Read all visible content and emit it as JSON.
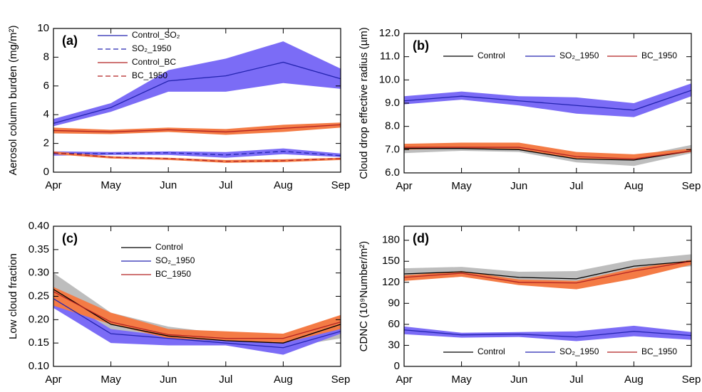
{
  "chart_data": [
    {
      "type": "line",
      "label": "(a)",
      "ylabel": "Aerosol column burden (mg/m²)",
      "categories": [
        "Apr",
        "May",
        "Jun",
        "Jul",
        "Aug",
        "Sep"
      ],
      "ylim": [
        0,
        10
      ],
      "yticks": [
        0,
        2,
        4,
        6,
        8,
        10
      ],
      "legend": "upper left",
      "legend_layout": "column",
      "series": [
        {
          "name": "Control_SO₂",
          "color": "#2424b0",
          "band_color": "#7b6cf6",
          "linestyle": "solid",
          "values": [
            3.4,
            4.5,
            6.35,
            6.7,
            7.65,
            6.5
          ],
          "lower": [
            3.2,
            4.2,
            5.6,
            5.6,
            6.2,
            5.8
          ],
          "upper": [
            3.7,
            4.8,
            7.1,
            7.9,
            9.1,
            7.2
          ]
        },
        {
          "name": "SO₂_1950",
          "color": "#2424b0",
          "band_color": "#7b6cf6",
          "linestyle": "dashed",
          "values": [
            1.3,
            1.3,
            1.35,
            1.2,
            1.45,
            1.15
          ],
          "lower": [
            1.15,
            1.2,
            1.2,
            1.0,
            1.25,
            1.05
          ],
          "upper": [
            1.45,
            1.4,
            1.45,
            1.4,
            1.65,
            1.3
          ]
        },
        {
          "name": "Control_BC",
          "color": "#b22222",
          "band_color": "#f47b45",
          "linestyle": "solid",
          "values": [
            2.9,
            2.8,
            2.95,
            2.8,
            3.05,
            3.3
          ],
          "lower": [
            2.7,
            2.65,
            2.8,
            2.6,
            2.8,
            3.1
          ],
          "upper": [
            3.1,
            2.95,
            3.1,
            3.0,
            3.3,
            3.45
          ]
        },
        {
          "name": "BC_1950",
          "color": "#b22222",
          "band_color": "#f47b45",
          "linestyle": "dashed",
          "values": [
            1.35,
            1.05,
            0.95,
            0.75,
            0.8,
            0.95
          ],
          "lower": [
            1.25,
            0.95,
            0.85,
            0.65,
            0.7,
            0.85
          ],
          "upper": [
            1.45,
            1.1,
            1.0,
            0.85,
            0.9,
            1.0
          ]
        }
      ]
    },
    {
      "type": "line",
      "label": "(b)",
      "ylabel": "Cloud drop effective radius (µm)",
      "categories": [
        "Apr",
        "May",
        "Jun",
        "Jul",
        "Aug",
        "Sep"
      ],
      "ylim": [
        6,
        12
      ],
      "yticks": [
        {
          "value": 6,
          "label": "6.0"
        },
        {
          "value": 7,
          "label": "7.0"
        },
        {
          "value": 8,
          "label": "8.0"
        },
        {
          "value": 9,
          "label": "9.0"
        },
        {
          "value": 10,
          "label": "10.0"
        },
        {
          "value": 11,
          "label": "11.0"
        },
        {
          "value": 12,
          "label": "12.0"
        }
      ],
      "legend": "upper center",
      "legend_layout": "row",
      "series": [
        {
          "name": "Control",
          "color": "#000000",
          "band_color": "#bdbdbd",
          "linestyle": "solid",
          "values": [
            7.05,
            7.05,
            7.0,
            6.6,
            6.55,
            6.95
          ],
          "lower": [
            6.85,
            6.95,
            6.9,
            6.45,
            6.3,
            6.85
          ],
          "upper": [
            7.15,
            7.15,
            7.1,
            6.75,
            6.7,
            7.2
          ]
        },
        {
          "name": "SO₂_1950",
          "color": "#2424b0",
          "band_color": "#7b6cf6",
          "linestyle": "solid",
          "values": [
            9.1,
            9.3,
            9.1,
            8.9,
            8.7,
            9.55
          ],
          "lower": [
            8.95,
            9.15,
            8.9,
            8.55,
            8.4,
            9.3
          ],
          "upper": [
            9.3,
            9.5,
            9.3,
            9.25,
            9.0,
            9.85
          ]
        },
        {
          "name": "BC_1950",
          "color": "#b22222",
          "band_color": "#f47b45",
          "linestyle": "solid",
          "values": [
            7.1,
            7.1,
            7.1,
            6.7,
            6.6,
            6.95
          ],
          "lower": [
            7.0,
            7.05,
            7.0,
            6.6,
            6.55,
            6.9
          ],
          "upper": [
            7.25,
            7.3,
            7.3,
            6.9,
            6.8,
            7.05
          ]
        }
      ]
    },
    {
      "type": "line",
      "label": "(c)",
      "ylabel": "Low cloud fraction",
      "categories": [
        "Apr",
        "May",
        "Jun",
        "Jul",
        "Aug",
        "Sep"
      ],
      "ylim": [
        0.1,
        0.4
      ],
      "yticks": [
        {
          "value": 0.1,
          "label": "0.10"
        },
        0.15,
        {
          "value": 0.2,
          "label": "0.20"
        },
        0.25,
        {
          "value": 0.3,
          "label": "0.30"
        },
        0.35,
        {
          "value": 0.4,
          "label": "0.40"
        }
      ],
      "legend": "upper center",
      "legend_layout": "column",
      "series": [
        {
          "name": "Control",
          "color": "#000000",
          "band_color": "#bdbdbd",
          "linestyle": "solid",
          "values": [
            0.265,
            0.19,
            0.165,
            0.155,
            0.15,
            0.19
          ],
          "lower": [
            0.23,
            0.17,
            0.15,
            0.145,
            0.14,
            0.16
          ],
          "upper": [
            0.3,
            0.215,
            0.185,
            0.17,
            0.17,
            0.205
          ]
        },
        {
          "name": "SO₂_1950",
          "color": "#2424b0",
          "band_color": "#7b6cf6",
          "linestyle": "solid",
          "values": [
            0.245,
            0.17,
            0.16,
            0.15,
            0.14,
            0.175
          ],
          "lower": [
            0.225,
            0.15,
            0.145,
            0.145,
            0.125,
            0.17
          ],
          "upper": [
            0.255,
            0.18,
            0.165,
            0.16,
            0.15,
            0.185
          ]
        },
        {
          "name": "BC_1950",
          "color": "#b22222",
          "band_color": "#f47b45",
          "linestyle": "solid",
          "values": [
            0.26,
            0.195,
            0.168,
            0.16,
            0.16,
            0.195
          ],
          "lower": [
            0.23,
            0.19,
            0.16,
            0.155,
            0.15,
            0.18
          ],
          "upper": [
            0.27,
            0.215,
            0.18,
            0.175,
            0.17,
            0.21
          ]
        }
      ]
    },
    {
      "type": "line",
      "label": "(d)",
      "ylabel": "CDNC (10⁹Number/m²)",
      "categories": [
        "Apr",
        "May",
        "Jun",
        "Jul",
        "Aug",
        "Sep"
      ],
      "ylim": [
        0,
        200
      ],
      "yticks": [
        0,
        30,
        60,
        90,
        120,
        150,
        180
      ],
      "legend": "lower center",
      "legend_layout": "row",
      "series": [
        {
          "name": "Control",
          "color": "#000000",
          "band_color": "#bdbdbd",
          "linestyle": "solid",
          "values": [
            132,
            135,
            127,
            125,
            143,
            150
          ],
          "lower": [
            123,
            128,
            118,
            116,
            135,
            143
          ],
          "upper": [
            140,
            142,
            135,
            136,
            152,
            160
          ]
        },
        {
          "name": "SO₂_1950",
          "color": "#2424b0",
          "band_color": "#7b6cf6",
          "linestyle": "solid",
          "values": [
            52,
            45,
            46,
            42,
            50,
            44
          ],
          "lower": [
            46,
            41,
            42,
            36,
            43,
            38
          ],
          "upper": [
            57,
            48,
            49,
            50,
            58,
            49
          ]
        },
        {
          "name": "BC_1950",
          "color": "#b22222",
          "band_color": "#f47b45",
          "linestyle": "solid",
          "values": [
            127,
            133,
            120,
            119,
            136,
            150
          ],
          "lower": [
            122,
            128,
            116,
            110,
            125,
            145
          ],
          "upper": [
            130,
            136,
            124,
            122,
            140,
            152
          ]
        }
      ]
    }
  ]
}
